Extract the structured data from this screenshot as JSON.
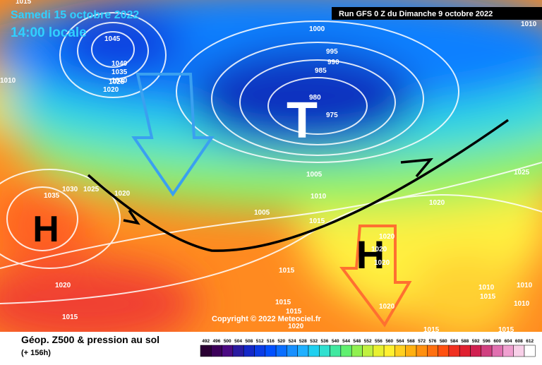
{
  "header": {
    "date": "Samedi 15 octobre 2022",
    "time": "14:00 locale",
    "run": "Run GFS 0 Z du Dimanche 9 octobre 2022"
  },
  "centers": [
    "H",
    "T",
    "H"
  ],
  "isobar_labels": [
    "1015",
    "1010",
    "1045",
    "1040",
    "1035",
    "1030",
    "1025",
    "1020",
    "1000",
    "995",
    "990",
    "985",
    "980",
    "975",
    "1010",
    "1005",
    "1010",
    "1005",
    "1015",
    "1035",
    "1030",
    "1025",
    "1020",
    "1020",
    "1025",
    "1020",
    "1015",
    "1015",
    "1015",
    "1015",
    "1020",
    "1020",
    "1020",
    "1020",
    "1020",
    "1015",
    "1010",
    "1015",
    "1010",
    "1010",
    "1015"
  ],
  "copyright": "Copyright © 2022 Meteociel.fr",
  "footer": {
    "title": "Géop. Z500 & pression au sol",
    "lead": "(+ 156h)"
  },
  "legend": {
    "labels": [
      "492",
      "496",
      "500",
      "504",
      "508",
      "512",
      "516",
      "520",
      "524",
      "528",
      "532",
      "536",
      "540",
      "544",
      "548",
      "552",
      "556",
      "560",
      "564",
      "568",
      "572",
      "576",
      "580",
      "584",
      "588",
      "592",
      "596",
      "600",
      "604",
      "608",
      "612"
    ],
    "colors": [
      "#2a0033",
      "#3c0059",
      "#4b0a82",
      "#2a1aa0",
      "#1428c8",
      "#0a3ce6",
      "#0050ff",
      "#0a6eff",
      "#1890ff",
      "#20b0ff",
      "#20d0f0",
      "#30e0d0",
      "#40e8a0",
      "#60f070",
      "#90f050",
      "#c0f040",
      "#e8f030",
      "#fff030",
      "#ffd020",
      "#ffb010",
      "#ff9010",
      "#ff7010",
      "#ff5010",
      "#f03020",
      "#e02030",
      "#d02050",
      "#d04080",
      "#e070b0",
      "#f0a0d0",
      "#f8d0e8",
      "#ffffff"
    ]
  }
}
